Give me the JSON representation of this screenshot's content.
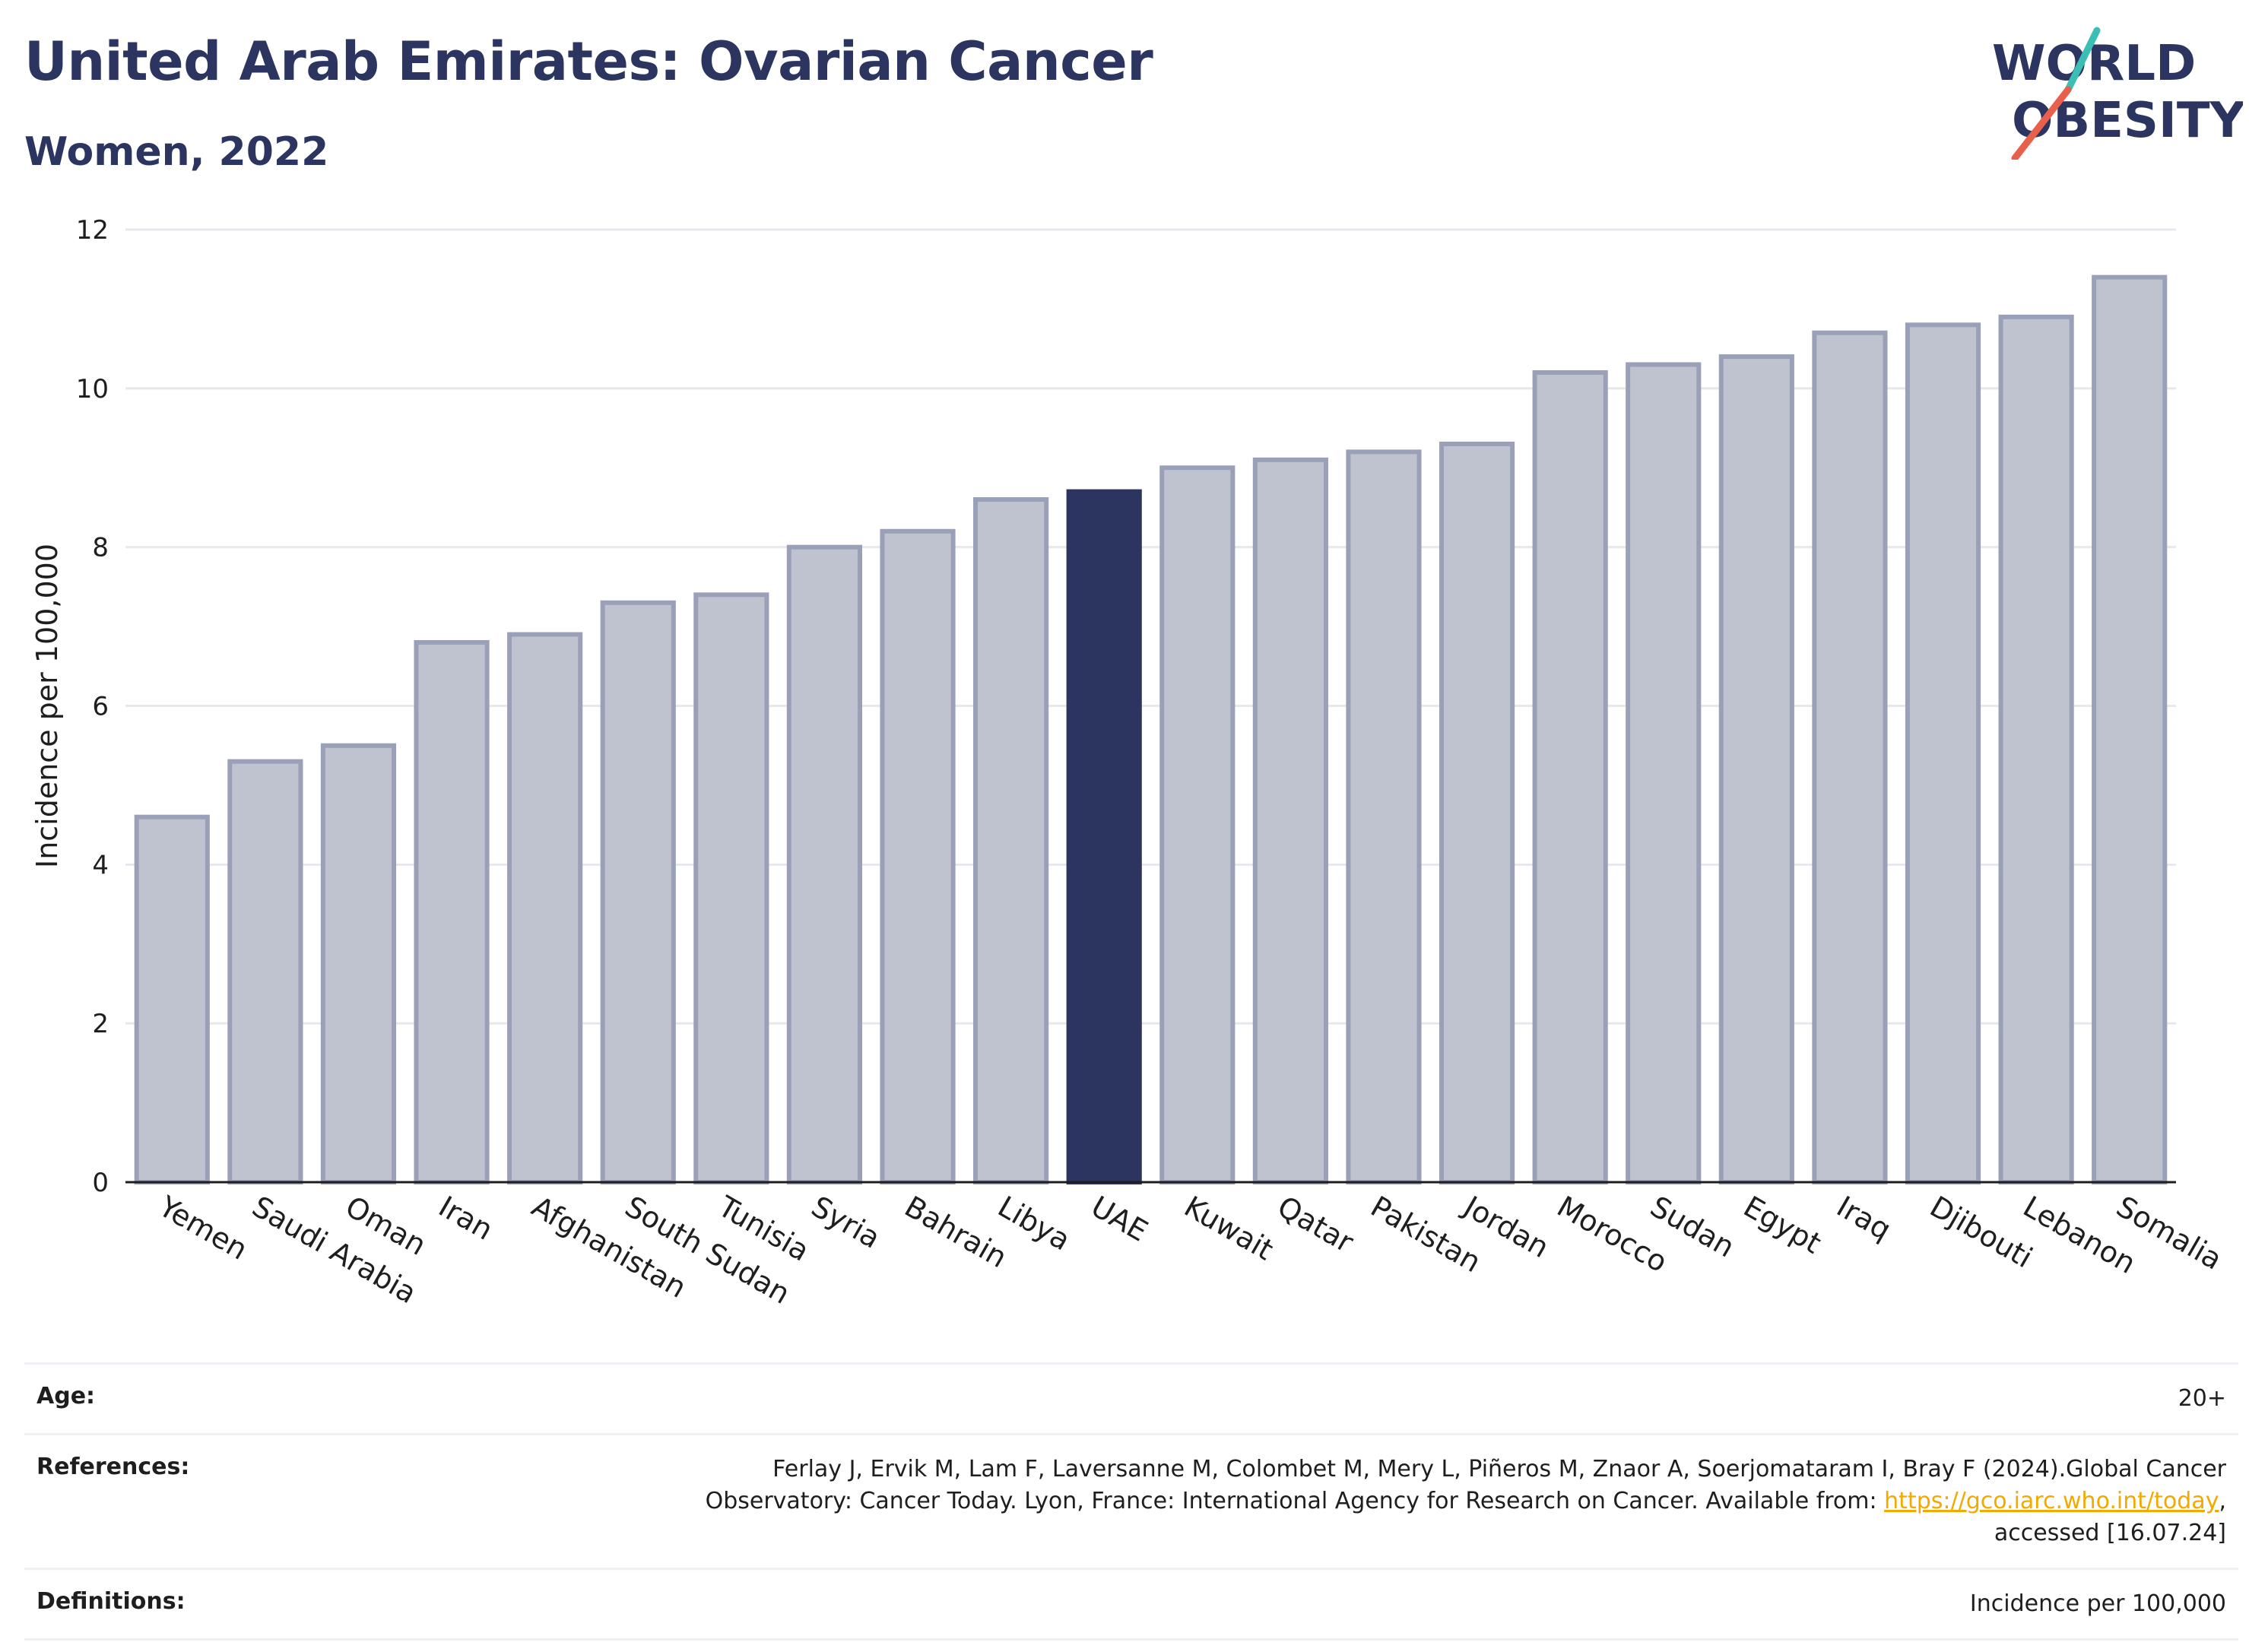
{
  "header": {
    "title": "United Arab Emirates: Ovarian Cancer",
    "subtitle": "Women, 2022"
  },
  "logo": {
    "line1": "WORLD",
    "line2": "OBESITY",
    "accent_colors": [
      "#3bbfb5",
      "#e8604c"
    ],
    "text_color": "#2b3560"
  },
  "chart_data": {
    "type": "bar",
    "ylabel": "Incidence per 100,000",
    "ylim": [
      0,
      12
    ],
    "yticks": [
      0,
      2,
      4,
      6,
      8,
      10,
      12
    ],
    "grid": true,
    "categories": [
      "Yemen",
      "Saudi Arabia",
      "Oman",
      "Iran",
      "Afghanistan",
      "South Sudan",
      "Tunisia",
      "Syria",
      "Bahrain",
      "Libya",
      "UAE",
      "Kuwait",
      "Qatar",
      "Pakistan",
      "Jordan",
      "Morocco",
      "Sudan",
      "Egypt",
      "Iraq",
      "Djibouti",
      "Lebanon",
      "Somalia"
    ],
    "values": [
      4.6,
      5.3,
      5.5,
      6.8,
      6.9,
      7.3,
      7.4,
      8.0,
      8.2,
      8.6,
      8.7,
      9.0,
      9.1,
      9.2,
      9.3,
      10.2,
      10.3,
      10.4,
      10.7,
      10.8,
      10.9,
      11.4
    ],
    "highlight": "UAE",
    "colors": {
      "bar": "#bfc3d0",
      "bar_border": "#9aa0b8",
      "highlight": "#2b3560",
      "grid": "#e6e8ee",
      "axis": "#1e1e1e"
    }
  },
  "info": {
    "age_label": "Age:",
    "age_value": "20+",
    "references_label": "References:",
    "references_text_1": "Ferlay J, Ervik M, Lam F, Laversanne M, Colombet M, Mery L, Piñeros M, Znaor A, Soerjomataram I, Bray F (2024).Global Cancer Observatory: Cancer Today. Lyon, France: International Agency for Research on Cancer. Available from: ",
    "references_link": "https://gco.iarc.who.int/today",
    "references_text_2": ", accessed [16.07.24]",
    "definitions_label": "Definitions:",
    "definitions_value": "Incidence per 100,000"
  }
}
